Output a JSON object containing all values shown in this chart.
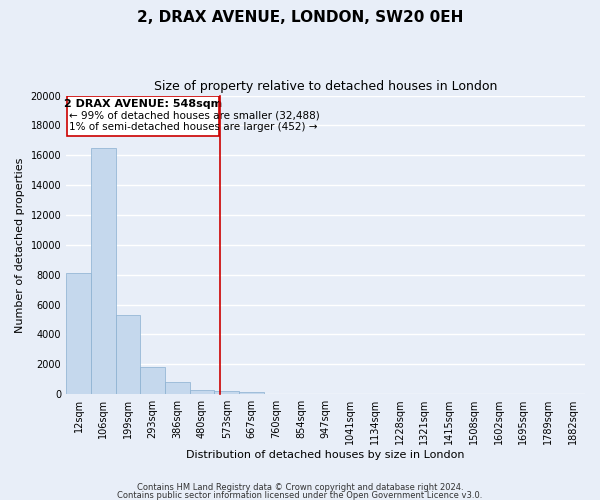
{
  "title": "2, DRAX AVENUE, LONDON, SW20 0EH",
  "subtitle": "Size of property relative to detached houses in London",
  "xlabel": "Distribution of detached houses by size in London",
  "ylabel": "Number of detached properties",
  "bar_color": "#c5d8ed",
  "bar_edge_color": "#89afd0",
  "categories": [
    "12sqm",
    "106sqm",
    "199sqm",
    "293sqm",
    "386sqm",
    "480sqm",
    "573sqm",
    "667sqm",
    "760sqm",
    "854sqm",
    "947sqm",
    "1041sqm",
    "1134sqm",
    "1228sqm",
    "1321sqm",
    "1415sqm",
    "1508sqm",
    "1602sqm",
    "1695sqm",
    "1789sqm",
    "1882sqm"
  ],
  "values": [
    8100,
    16500,
    5300,
    1800,
    800,
    300,
    200,
    150,
    0,
    0,
    0,
    0,
    0,
    0,
    0,
    0,
    0,
    0,
    0,
    0,
    0
  ],
  "ylim": [
    0,
    20000
  ],
  "yticks": [
    0,
    2000,
    4000,
    6000,
    8000,
    10000,
    12000,
    14000,
    16000,
    18000,
    20000
  ],
  "annotation_title": "2 DRAX AVENUE: 548sqm",
  "annotation_line1": "← 99% of detached houses are smaller (32,488)",
  "annotation_line2": "1% of semi-detached houses are larger (452) →",
  "footer1": "Contains HM Land Registry data © Crown copyright and database right 2024.",
  "footer2": "Contains public sector information licensed under the Open Government Licence v3.0.",
  "background_color": "#e8eef8",
  "grid_color": "#ffffff",
  "annotation_box_color": "#ffffff",
  "annotation_box_edge_color": "#cc0000",
  "property_line_color": "#cc0000",
  "title_fontsize": 11,
  "subtitle_fontsize": 9,
  "axis_label_fontsize": 8,
  "tick_fontsize": 7,
  "annotation_fontsize": 8,
  "footer_fontsize": 6
}
